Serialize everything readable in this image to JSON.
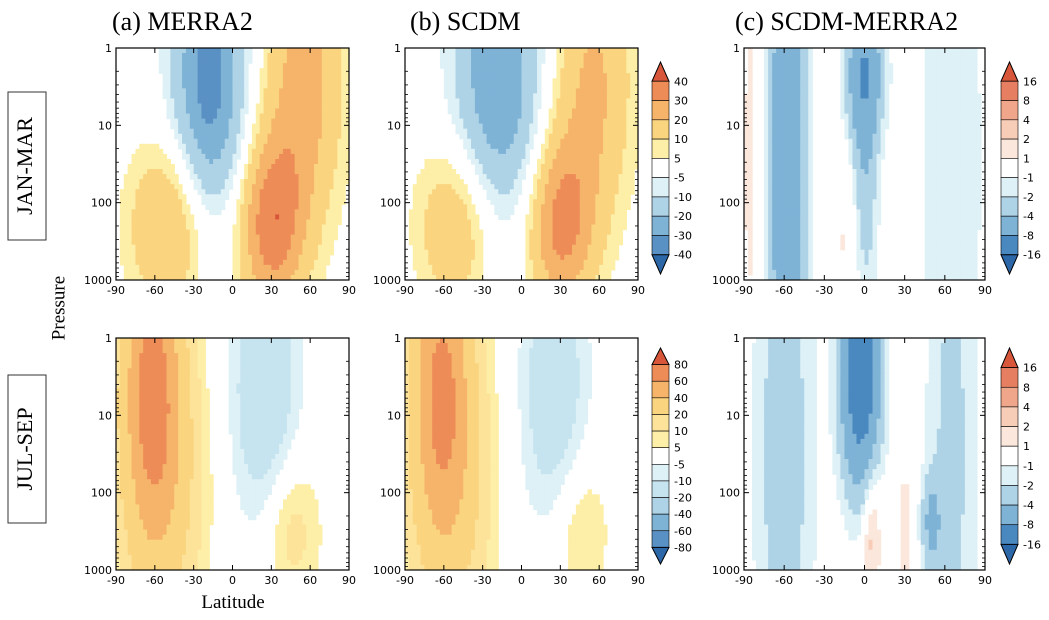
{
  "figure": {
    "column_titles": [
      "(a) MERRA2",
      "(b) SCDM",
      "(c) SCDM-MERRA2"
    ],
    "row_labels": [
      "JAN-MAR",
      "JUL-SEP"
    ],
    "ylabel": "Pressure",
    "xlabel": "Latitude"
  },
  "chart_data": [
    {
      "type": "heatmap",
      "panel": "JAN-MAR (a) MERRA2",
      "title": "(a) MERRA2",
      "x_ticks": [
        -90,
        -60,
        -30,
        0,
        30,
        60,
        90
      ],
      "y_ticks": [
        1,
        10,
        100,
        1000
      ],
      "y_scale": "log-reversed",
      "xlim": [
        -90,
        90
      ],
      "ylim": [
        1000,
        1
      ],
      "blobs": [
        {
          "lat": -18,
          "p": 3,
          "value": -35,
          "spread_lat": 20,
          "spread_logp": 1.2
        },
        {
          "lat": 55,
          "p": 3,
          "value": 25,
          "spread_lat": 22,
          "spread_logp": 1.3
        },
        {
          "lat": 30,
          "p": 200,
          "value": 35,
          "spread_lat": 18,
          "spread_logp": 0.8
        },
        {
          "lat": -50,
          "p": 200,
          "value": 22,
          "spread_lat": 22,
          "spread_logp": 0.8
        }
      ]
    },
    {
      "type": "heatmap",
      "panel": "JAN-MAR (b) SCDM",
      "title": "(b) SCDM",
      "x_ticks": [
        -90,
        -60,
        -30,
        0,
        30,
        60,
        90
      ],
      "y_ticks": [
        1,
        10,
        100,
        1000
      ],
      "y_scale": "log-reversed",
      "xlim": [
        -90,
        90
      ],
      "ylim": [
        1000,
        1
      ],
      "blobs": [
        {
          "lat": -18,
          "p": 3,
          "value": -30,
          "spread_lat": 24,
          "spread_logp": 1.3
        },
        {
          "lat": 55,
          "p": 3,
          "value": 22,
          "spread_lat": 22,
          "spread_logp": 1.3
        },
        {
          "lat": 30,
          "p": 200,
          "value": 32,
          "spread_lat": 18,
          "spread_logp": 0.8
        },
        {
          "lat": -50,
          "p": 200,
          "value": 20,
          "spread_lat": 22,
          "spread_logp": 0.8
        }
      ]
    },
    {
      "type": "heatmap",
      "panel": "JAN-MAR (c) SCDM-MERRA2",
      "title": "(c) SCDM-MERRA2",
      "x_ticks": [
        -90,
        -60,
        -30,
        0,
        30,
        60,
        90
      ],
      "y_ticks": [
        1,
        10,
        100,
        1000
      ],
      "y_scale": "log-reversed",
      "xlim": [
        -90,
        90
      ],
      "ylim": [
        1000,
        1
      ],
      "blobs": [
        {
          "lat": -58,
          "p": 30,
          "value": -7,
          "spread_lat": 10,
          "spread_logp": 3.0
        },
        {
          "lat": 0,
          "p": 2,
          "value": -6,
          "spread_lat": 10,
          "spread_logp": 0.6
        },
        {
          "lat": 0,
          "p": 40,
          "value": -4,
          "spread_lat": 7,
          "spread_logp": 1.4
        },
        {
          "lat": 65,
          "p": 30,
          "value": -2,
          "spread_lat": 18,
          "spread_logp": 3.0
        },
        {
          "lat": -85,
          "p": 30,
          "value": 1.5,
          "spread_lat": 5,
          "spread_logp": 2.0
        },
        {
          "lat": -10,
          "p": 300,
          "value": 1.5,
          "spread_lat": 10,
          "spread_logp": 0.8
        }
      ]
    },
    {
      "type": "heatmap",
      "panel": "JUL-SEP (a) MERRA2",
      "title": "",
      "x_ticks": [
        -90,
        -60,
        -30,
        0,
        30,
        60,
        90
      ],
      "y_ticks": [
        1,
        10,
        100,
        1000
      ],
      "y_scale": "log-reversed",
      "xlim": [
        -90,
        90
      ],
      "ylim": [
        1000,
        1
      ],
      "blobs": [
        {
          "lat": -62,
          "p": 3,
          "value": 60,
          "spread_lat": 16,
          "spread_logp": 1.4
        },
        {
          "lat": -55,
          "p": 100,
          "value": 25,
          "spread_lat": 22,
          "spread_logp": 1.4
        },
        {
          "lat": 25,
          "p": 5,
          "value": -20,
          "spread_lat": 18,
          "spread_logp": 1.3
        },
        {
          "lat": 45,
          "p": 300,
          "value": 15,
          "spread_lat": 16,
          "spread_logp": 0.7
        }
      ]
    },
    {
      "type": "heatmap",
      "panel": "JUL-SEP (b) SCDM",
      "title": "",
      "x_ticks": [
        -90,
        -60,
        -30,
        0,
        30,
        60,
        90
      ],
      "y_ticks": [
        1,
        10,
        100,
        1000
      ],
      "y_scale": "log-reversed",
      "xlim": [
        -90,
        90
      ],
      "ylim": [
        1000,
        1
      ],
      "blobs": [
        {
          "lat": -62,
          "p": 3,
          "value": 55,
          "spread_lat": 16,
          "spread_logp": 1.4
        },
        {
          "lat": -55,
          "p": 100,
          "value": 24,
          "spread_lat": 22,
          "spread_logp": 1.4
        },
        {
          "lat": 25,
          "p": 5,
          "value": -18,
          "spread_lat": 18,
          "spread_logp": 1.3
        },
        {
          "lat": 45,
          "p": 300,
          "value": 12,
          "spread_lat": 16,
          "spread_logp": 0.7
        }
      ]
    },
    {
      "type": "heatmap",
      "panel": "JUL-SEP (c) SCDM-MERRA2",
      "title": "",
      "x_ticks": [
        -90,
        -60,
        -30,
        0,
        30,
        60,
        90
      ],
      "y_ticks": [
        1,
        10,
        100,
        1000
      ],
      "y_scale": "log-reversed",
      "xlim": [
        -90,
        90
      ],
      "ylim": [
        1000,
        1
      ],
      "blobs": [
        {
          "lat": -3,
          "p": 3,
          "value": -12,
          "spread_lat": 10,
          "spread_logp": 1.0
        },
        {
          "lat": -60,
          "p": 30,
          "value": -3,
          "spread_lat": 16,
          "spread_logp": 3.0
        },
        {
          "lat": 65,
          "p": 30,
          "value": -2.5,
          "spread_lat": 14,
          "spread_logp": 3.0
        },
        {
          "lat": 50,
          "p": 250,
          "value": -4,
          "spread_lat": 5,
          "spread_logp": 0.4
        },
        {
          "lat": 5,
          "p": 300,
          "value": 3,
          "spread_lat": 5,
          "spread_logp": 0.6
        },
        {
          "lat": 30,
          "p": 300,
          "value": 2,
          "spread_lat": 4,
          "spread_logp": 0.6
        }
      ]
    }
  ],
  "colorbars": [
    {
      "panel_row": "JAN-MAR (a),(b)",
      "levels": [
        40,
        30,
        20,
        10,
        5,
        -5,
        -10,
        -20,
        -30,
        -40
      ],
      "colors": [
        "#d8573b",
        "#ee8c58",
        "#f5b46a",
        "#fad47f",
        "#fdefa7",
        "#ffffff",
        "#def1f6",
        "#afd3e6",
        "#7eb3d6",
        "#5a91c4",
        "#2c67a8"
      ]
    },
    {
      "panel_row": "JAN-MAR (c)",
      "levels": [
        16,
        8,
        4,
        2,
        1,
        -1,
        -2,
        -4,
        -8,
        -16
      ],
      "colors": [
        "#d8573b",
        "#e67f62",
        "#f0a68a",
        "#f8cdb8",
        "#fbe7dc",
        "#ffffff",
        "#def1f6",
        "#afd3e6",
        "#7eb3d6",
        "#4a88c0",
        "#2c67a8"
      ]
    },
    {
      "panel_row": "JUL-SEP (a),(b)",
      "levels": [
        80,
        60,
        40,
        20,
        10,
        5,
        -5,
        -10,
        -20,
        -40,
        -60,
        -80
      ],
      "colors": [
        "#d8573b",
        "#ee8c58",
        "#f5b46a",
        "#fad47f",
        "#fde39a",
        "#fdefa7",
        "#ffffff",
        "#def1f6",
        "#c6e4ef",
        "#afd3e6",
        "#7eb3d6",
        "#5a91c4",
        "#2c67a8"
      ]
    },
    {
      "panel_row": "JUL-SEP (c)",
      "levels": [
        16,
        8,
        4,
        2,
        1,
        -1,
        -2,
        -4,
        -8,
        -16
      ],
      "colors": [
        "#d8573b",
        "#e67f62",
        "#f0a68a",
        "#f8cdb8",
        "#fbe7dc",
        "#ffffff",
        "#def1f6",
        "#afd3e6",
        "#7eb3d6",
        "#4a88c0",
        "#2c67a8"
      ]
    }
  ]
}
